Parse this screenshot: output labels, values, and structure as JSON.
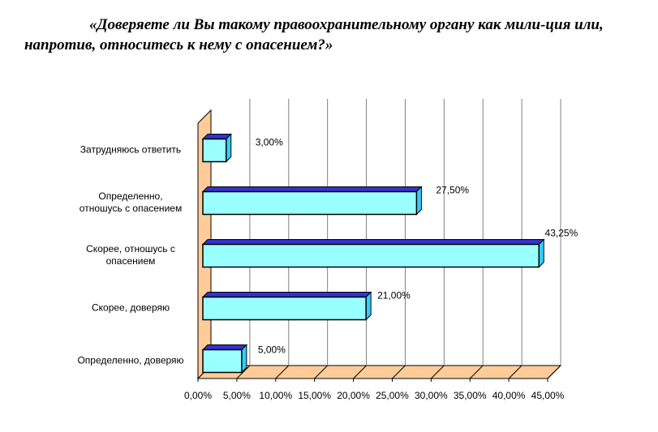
{
  "chart_data": {
    "type": "bar",
    "orientation": "horizontal",
    "title": "«Доверяете ли Вы такому правоохранительному органу как мили-ция или, напротив, относитесь к нему с опасением?»",
    "categories": [
      "Затрудняюсь ответить",
      "Определенно, отношусь с опасением",
      "Скорее, отношусь с опасением",
      "Скорее, доверяю",
      "Определенно, доверяю"
    ],
    "category_lines": [
      [
        "Затрудняюсь ответить"
      ],
      [
        "Определенно,",
        "отношусь с опасением"
      ],
      [
        "Скорее, отношусь с",
        "опасением"
      ],
      [
        "Скорее, доверяю"
      ],
      [
        "Определенно, доверяю"
      ]
    ],
    "values": [
      3.0,
      27.5,
      43.25,
      21.0,
      5.0
    ],
    "value_labels": [
      "3,00%",
      "27,50%",
      "43,25%",
      "21,00%",
      "5,00%"
    ],
    "xlim": [
      0,
      45
    ],
    "xticks": [
      0,
      5,
      10,
      15,
      20,
      25,
      30,
      35,
      40,
      45
    ],
    "xtick_labels": [
      "0,00%",
      "5,00%",
      "10,00%",
      "15,00%",
      "20,00%",
      "25,00%",
      "30,00%",
      "35,00%",
      "40,00%",
      "45,00%"
    ],
    "xlabel": "",
    "ylabel": "",
    "grid": true,
    "legend": "none",
    "colors": {
      "bar_front": "#99ffff",
      "bar_top": "#3333cc",
      "bar_side": "#33ccff",
      "floor_and_wall": "#ffcc99",
      "grid": "#808080"
    }
  }
}
